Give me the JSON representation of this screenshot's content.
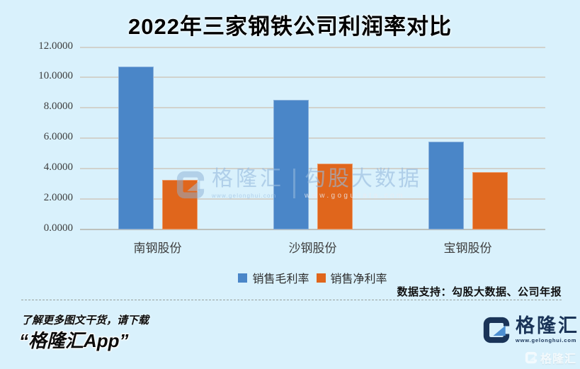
{
  "header": {
    "title": "2022年三家钢铁公司利润率对比"
  },
  "chart_data": {
    "type": "bar",
    "title": "2022年三家钢铁公司利润率对比",
    "categories": [
      "南钢股份",
      "沙钢股份",
      "宝钢股份"
    ],
    "series": [
      {
        "name": "销售毛利率",
        "color": "#4a86c8",
        "values": [
          10.72,
          8.55,
          5.8
        ]
      },
      {
        "name": "销售净利率",
        "color": "#e0661c",
        "values": [
          3.25,
          4.35,
          3.76
        ]
      }
    ],
    "ylim": [
      0,
      12
    ],
    "yticks": [
      0,
      2,
      4,
      6,
      8,
      10,
      12
    ],
    "ytick_labels": [
      "0.0000",
      "2.0000",
      "4.0000",
      "6.0000",
      "8.0000",
      "10.0000",
      "12.0000"
    ],
    "grid": true,
    "legend_position": "bottom-center"
  },
  "watermark": {
    "brand": "格隆汇",
    "brand_url": "www.gelonghui.com",
    "partner": "勾股大数据",
    "partner_url": "www.gogudata.com"
  },
  "annotations": {
    "data_support": "数据支持：勾股大数据、公司年报"
  },
  "footer": {
    "promo_line1": "了解更多图文干货，请下载",
    "promo_line2": "“格隆汇App”",
    "brand": "格隆汇",
    "brand_url": "www.gelonghui.com",
    "corner_watermark": "格隆汇"
  },
  "colors": {
    "background": "#d9f1fc",
    "bar_blue": "#4a86c8",
    "bar_orange": "#e0661c",
    "gridline": "#d1d2cd",
    "logo_navy": "#1a3458",
    "logo_blue": "#4d8fd1",
    "watermark_blue": "#9cc0e2"
  }
}
